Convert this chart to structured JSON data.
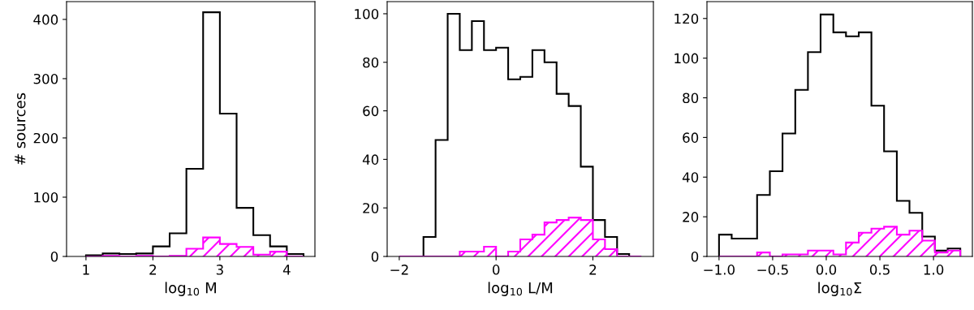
{
  "chart_data": [
    {
      "type": "histogram",
      "xlabel": "log$_{10}$ M",
      "ylabel": "# sources",
      "bins": [
        1.0,
        1.25,
        1.5,
        1.75,
        2.0,
        2.25,
        2.5,
        2.75,
        3.0,
        3.25,
        3.5,
        3.75,
        4.0,
        4.25
      ],
      "series": [
        {
          "color": "#000000",
          "values": [
            2,
            5,
            4,
            5,
            17,
            39,
            148,
            412,
            241,
            82,
            36,
            17,
            4
          ]
        },
        {
          "color": "#ff00ff",
          "values": [
            0,
            1,
            0,
            1,
            0,
            1,
            13,
            32,
            21,
            16,
            3,
            8,
            0
          ]
        }
      ],
      "xlim": [
        0.71,
        4.42
      ],
      "ylim": [
        0,
        430
      ],
      "xticks": [
        1,
        2,
        3,
        4
      ],
      "yticks": [
        0,
        100,
        200,
        300,
        400
      ],
      "grid": false
    },
    {
      "type": "histogram",
      "xlabel": "log$_{10}$ L/M",
      "bins": [
        -2.0,
        -1.75,
        -1.5,
        -1.25,
        -1.0,
        -0.75,
        -0.5,
        -0.25,
        0.0,
        0.25,
        0.5,
        0.75,
        1.0,
        1.25,
        1.5,
        1.75,
        2.0,
        2.25,
        2.5,
        2.75,
        3.0
      ],
      "series": [
        {
          "color": "#000000",
          "values": [
            0,
            0,
            8,
            48,
            100,
            85,
            97,
            85,
            86,
            73,
            74,
            85,
            80,
            67,
            62,
            37,
            15,
            8,
            1,
            0
          ]
        },
        {
          "color": "#ff00ff",
          "values": [
            0,
            0,
            0,
            0,
            0,
            2,
            2,
            4,
            0,
            2,
            7,
            9,
            14,
            15,
            16,
            15,
            7,
            3,
            0,
            0
          ]
        }
      ],
      "xlim": [
        -2.25,
        3.25
      ],
      "ylim": [
        0,
        105
      ],
      "xticks": [
        {
          "value": -2,
          "label": "−2"
        },
        0,
        2
      ],
      "yticks": [
        0,
        20,
        40,
        60,
        80,
        100
      ],
      "grid": false
    },
    {
      "type": "histogram",
      "xlabel": "log$_{10}$Σ",
      "bins": [
        -1.0,
        -0.882,
        -0.763,
        -0.645,
        -0.526,
        -0.408,
        -0.289,
        -0.171,
        -0.053,
        0.066,
        0.184,
        0.303,
        0.421,
        0.539,
        0.658,
        0.776,
        0.895,
        1.013,
        1.132,
        1.25
      ],
      "series": [
        {
          "color": "#000000",
          "values": [
            11,
            9,
            9,
            31,
            43,
            62,
            84,
            103,
            122,
            113,
            111,
            113,
            76,
            53,
            28,
            22,
            10,
            3,
            4
          ]
        },
        {
          "color": "#ff00ff",
          "values": [
            0,
            0,
            0,
            2,
            0,
            1,
            1,
            3,
            3,
            1,
            7,
            12,
            14,
            15,
            11,
            13,
            8,
            2,
            3
          ]
        }
      ],
      "xlim": [
        -1.1125,
        1.3625
      ],
      "ylim": [
        0,
        128.5
      ],
      "xticks": [
        {
          "value": -1.0,
          "label": "−1.0"
        },
        {
          "value": -0.5,
          "label": "−0.5"
        },
        {
          "value": 0.0,
          "label": "0.0"
        },
        {
          "value": 0.5,
          "label": "0.5"
        },
        {
          "value": 1.0,
          "label": "1.0"
        }
      ],
      "yticks": [
        0,
        20,
        40,
        60,
        80,
        100,
        120
      ],
      "grid": false
    }
  ]
}
